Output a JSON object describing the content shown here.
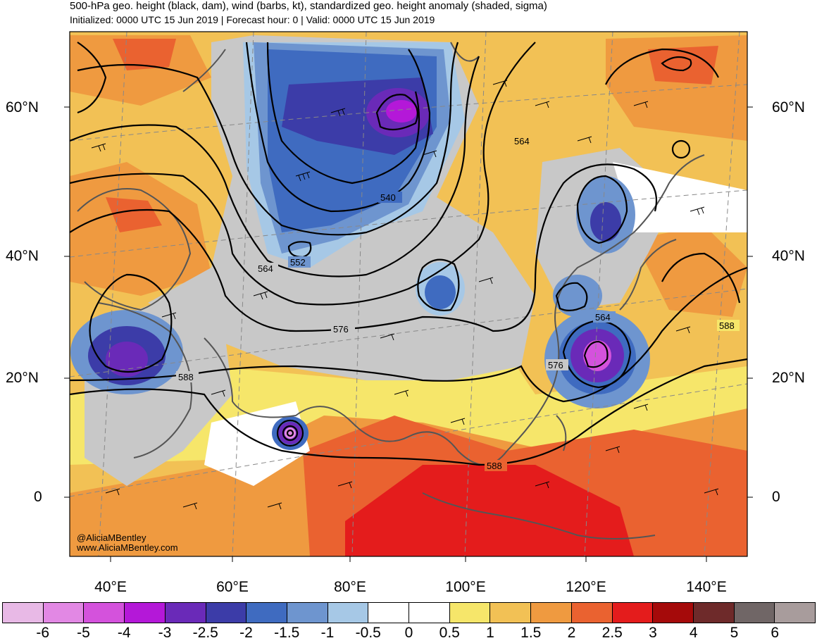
{
  "title": "500-hPa geo. height (black, dam), wind (barbs, kt), standardized geo. height anomaly (shaded, sigma)",
  "subtitle": "Initialized: 0000 UTC 15 Jun 2019 | Forecast hour: 0 | Valid: 0000 UTC 15 Jun 2019",
  "credits": {
    "handle": "@AliciaMBentley",
    "site": "www.AliciaMBentley.com"
  },
  "lat_labels_left": [
    "60°N",
    "40°N",
    "20°N",
    "0"
  ],
  "lat_labels_right": [
    "60°N",
    "40°N",
    "20°N",
    "0"
  ],
  "lon_labels": [
    "40°E",
    "60°E",
    "80°E",
    "100°E",
    "120°E",
    "140°E"
  ],
  "contour_labels": [
    "564",
    "540",
    "564",
    "552",
    "576",
    "588",
    "564",
    "576",
    "588",
    "588"
  ],
  "colorbar": {
    "labels": [
      "-6",
      "-5",
      "-4",
      "-3",
      "-2.5",
      "-2",
      "-1.5",
      "-1",
      "-0.5",
      "0",
      "0.5",
      "1",
      "1.5",
      "2",
      "2.5",
      "3",
      "4",
      "5",
      "6"
    ],
    "colors": [
      "#e8b9e6",
      "#e288e4",
      "#d452dc",
      "#b418d8",
      "#6a2ab8",
      "#3c3ca8",
      "#3f6bc0",
      "#6e95cf",
      "#a6c8e6",
      "#ffffff",
      "#ffffff",
      "#f6e66a",
      "#f2c155",
      "#ef9a40",
      "#ea6230",
      "#e41c1c",
      "#a50a0a",
      "#6e2a2a",
      "#706666",
      "#a89c9c"
    ]
  }
}
